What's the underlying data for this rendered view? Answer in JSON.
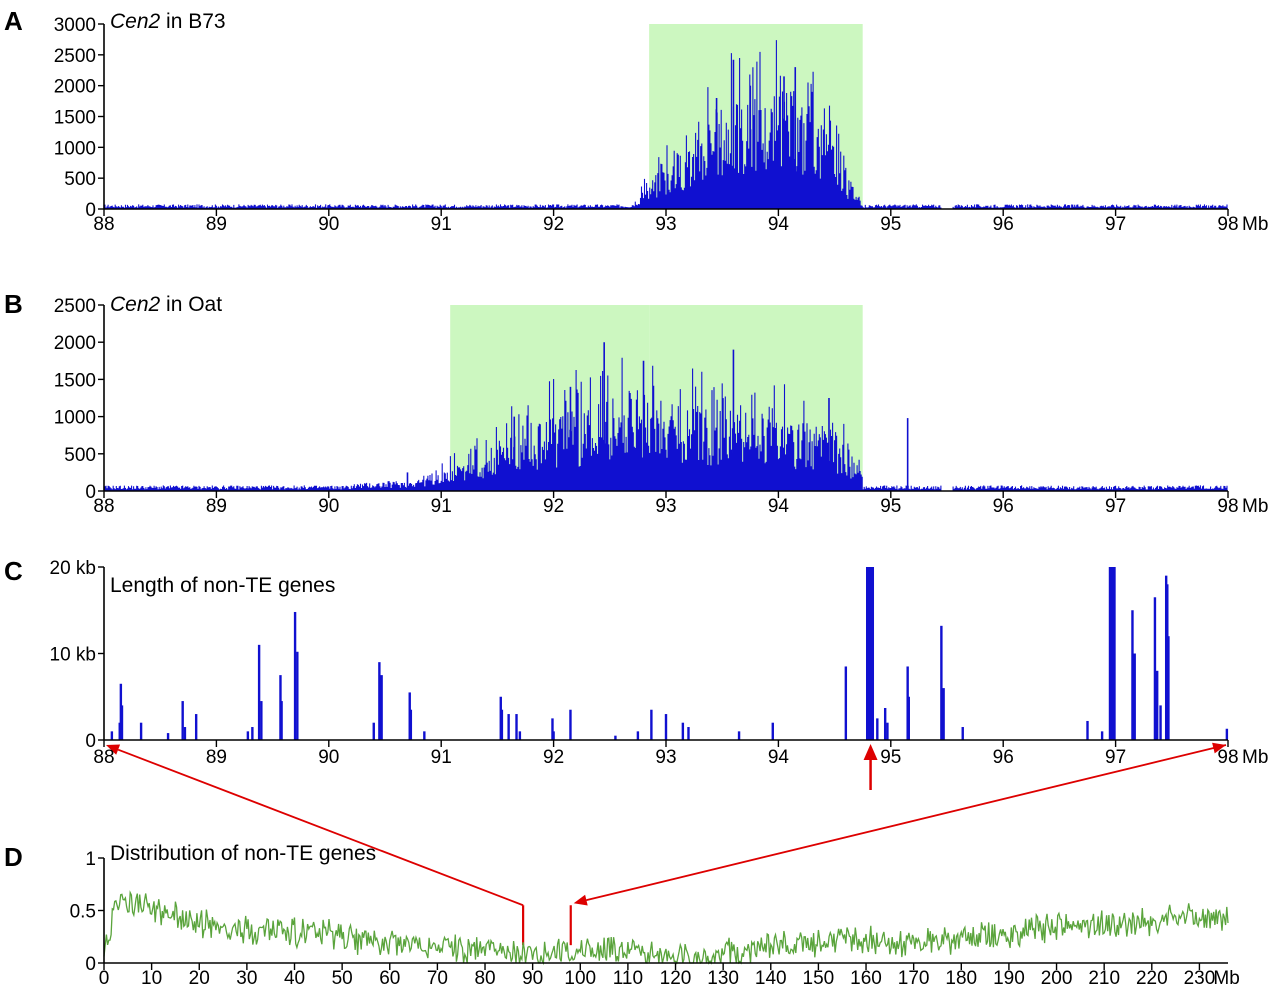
{
  "chart_data": [
    {
      "panel": "A",
      "type": "bar",
      "title_italic": "Cen2",
      "title_rest": " in B73",
      "x_unit": "Mb",
      "xlim": [
        88,
        98
      ],
      "x_ticks": [
        88,
        89,
        90,
        91,
        92,
        93,
        94,
        95,
        96,
        97,
        98
      ],
      "ylim": [
        0,
        3000
      ],
      "y_ticks": [
        0,
        500,
        1000,
        1500,
        2000,
        2500,
        3000
      ],
      "y_tick_labels": [
        "0",
        "500",
        "1000",
        "1500",
        "2000",
        "2500",
        "3000"
      ],
      "highlight_regions": [
        {
          "x": [
            92.85,
            94.75
          ],
          "y": [
            0,
            3000
          ]
        }
      ],
      "baseline": 60,
      "gaps": [
        [
          95.45,
          95.55
        ]
      ],
      "envelope": [
        [
          92.7,
          80
        ],
        [
          92.9,
          450
        ],
        [
          93.2,
          900
        ],
        [
          93.5,
          1400
        ],
        [
          93.8,
          1450
        ],
        [
          94.1,
          1600
        ],
        [
          94.4,
          1200
        ],
        [
          94.6,
          500
        ],
        [
          94.75,
          120
        ]
      ],
      "peaks": [
        [
          93.6,
          2420
        ],
        [
          94.15,
          2300
        ],
        [
          94.05,
          2150
        ],
        [
          93.75,
          2000
        ],
        [
          94.3,
          1900
        ],
        [
          93.45,
          1800
        ]
      ],
      "color": "#1010d0",
      "highlight_color": "#ccf7c0"
    },
    {
      "panel": "B",
      "type": "bar",
      "title_italic": "Cen2",
      "title_rest": " in Oat",
      "x_unit": "Mb",
      "xlim": [
        88,
        98
      ],
      "x_ticks": [
        88,
        89,
        90,
        91,
        92,
        93,
        94,
        95,
        96,
        97,
        98
      ],
      "ylim": [
        0,
        2500
      ],
      "y_ticks": [
        0,
        500,
        1000,
        1500,
        2000,
        2500
      ],
      "y_tick_labels": [
        "0",
        "500",
        "1000",
        "1500",
        "2000",
        "2500"
      ],
      "highlight_regions": [
        {
          "x": [
            91.08,
            92.85
          ],
          "y": [
            0,
            2500
          ]
        },
        {
          "x": [
            92.85,
            94.75
          ],
          "y": [
            0,
            2500
          ]
        }
      ],
      "baseline": 60,
      "gaps": [
        [
          95.45,
          95.55
        ]
      ],
      "envelope": [
        [
          90.2,
          80
        ],
        [
          90.7,
          120
        ],
        [
          91.0,
          220
        ],
        [
          91.3,
          380
        ],
        [
          91.6,
          650
        ],
        [
          92.0,
          850
        ],
        [
          92.4,
          1000
        ],
        [
          92.7,
          1100
        ],
        [
          93.0,
          1000
        ],
        [
          93.4,
          900
        ],
        [
          93.8,
          850
        ],
        [
          94.2,
          800
        ],
        [
          94.5,
          650
        ],
        [
          94.75,
          200
        ]
      ],
      "peaks": [
        [
          92.45,
          2000
        ],
        [
          92.8,
          1750
        ],
        [
          93.6,
          1900
        ],
        [
          92.15,
          1400
        ],
        [
          91.65,
          1000
        ],
        [
          94.45,
          1250
        ],
        [
          95.15,
          980
        ],
        [
          90.7,
          250
        ]
      ],
      "color": "#1010d0",
      "highlight_color": "#ccf7c0"
    },
    {
      "panel": "C",
      "type": "bar",
      "title": "Length of non-TE genes",
      "x_unit": "Mb",
      "xlim": [
        88,
        98
      ],
      "x_ticks": [
        88,
        89,
        90,
        91,
        92,
        93,
        94,
        95,
        96,
        97,
        98
      ],
      "ylim": [
        0,
        20
      ],
      "y_ticks": [
        0,
        10,
        20
      ],
      "y_tick_labels": [
        "0",
        "10 kb",
        "20 kb"
      ],
      "bars": [
        [
          88.07,
          1.0
        ],
        [
          88.15,
          6.5
        ],
        [
          88.16,
          4.0
        ],
        [
          88.14,
          2.0
        ],
        [
          88.33,
          2.0
        ],
        [
          88.57,
          0.8
        ],
        [
          88.7,
          4.5
        ],
        [
          88.72,
          1.5
        ],
        [
          88.82,
          3.0
        ],
        [
          89.28,
          1.0
        ],
        [
          89.32,
          1.5
        ],
        [
          89.38,
          11.0
        ],
        [
          89.4,
          4.5
        ],
        [
          89.57,
          7.5
        ],
        [
          89.58,
          4.5
        ],
        [
          89.7,
          14.8
        ],
        [
          89.72,
          10.2
        ],
        [
          90.4,
          2.0
        ],
        [
          90.45,
          9.0
        ],
        [
          90.47,
          7.5
        ],
        [
          90.72,
          5.5
        ],
        [
          90.73,
          3.5
        ],
        [
          90.85,
          1.0
        ],
        [
          91.53,
          5.0
        ],
        [
          91.54,
          3.5
        ],
        [
          91.6,
          3.0
        ],
        [
          91.67,
          3.0
        ],
        [
          91.7,
          1.0
        ],
        [
          91.99,
          2.5
        ],
        [
          92.0,
          1.0
        ],
        [
          92.15,
          3.5
        ],
        [
          92.55,
          0.5
        ],
        [
          92.75,
          1.0
        ],
        [
          92.87,
          3.5
        ],
        [
          93.0,
          3.0
        ],
        [
          93.15,
          2.0
        ],
        [
          93.2,
          1.5
        ],
        [
          93.65,
          1.0
        ],
        [
          93.95,
          2.0
        ],
        [
          94.6,
          8.5
        ],
        [
          94.79,
          20
        ],
        [
          94.8,
          20
        ],
        [
          94.81,
          20
        ],
        [
          94.82,
          20
        ],
        [
          94.83,
          20
        ],
        [
          94.84,
          20
        ],
        [
          94.88,
          2.5
        ],
        [
          94.95,
          3.7
        ],
        [
          94.97,
          2.0
        ],
        [
          95.15,
          8.5
        ],
        [
          95.16,
          5.0
        ],
        [
          95.45,
          13.2
        ],
        [
          95.47,
          6.0
        ],
        [
          95.64,
          1.5
        ],
        [
          96.75,
          2.2
        ],
        [
          96.88,
          1.0
        ],
        [
          96.95,
          20
        ],
        [
          96.96,
          20
        ],
        [
          96.97,
          20
        ],
        [
          96.98,
          20
        ],
        [
          96.99,
          20
        ],
        [
          97.15,
          15.0
        ],
        [
          97.17,
          10.0
        ],
        [
          97.35,
          16.5
        ],
        [
          97.37,
          8.0
        ],
        [
          97.4,
          4.0
        ],
        [
          97.45,
          19.0
        ],
        [
          97.46,
          18.0
        ],
        [
          97.47,
          12.0
        ],
        [
          97.99,
          1.3
        ]
      ],
      "arrow_at": 94.82,
      "color": "#1010d0"
    },
    {
      "panel": "D",
      "type": "line",
      "title": "Distribution of non-TE genes",
      "x_unit": "Mb",
      "xlim": [
        0,
        236
      ],
      "x_ticks": [
        0,
        10,
        20,
        30,
        40,
        50,
        60,
        70,
        80,
        90,
        100,
        110,
        120,
        130,
        140,
        150,
        160,
        170,
        180,
        190,
        200,
        210,
        220,
        230
      ],
      "ylim": [
        0,
        1
      ],
      "y_ticks": [
        0,
        0.5,
        1
      ],
      "y_tick_labels": [
        "0",
        "0.5",
        "1"
      ],
      "trend": [
        [
          0,
          0.15
        ],
        [
          1,
          0.2
        ],
        [
          2,
          0.6
        ],
        [
          5,
          0.58
        ],
        [
          15,
          0.45
        ],
        [
          25,
          0.32
        ],
        [
          40,
          0.3
        ],
        [
          55,
          0.22
        ],
        [
          70,
          0.15
        ],
        [
          85,
          0.1
        ],
        [
          95,
          0.1
        ],
        [
          100,
          0.12
        ],
        [
          110,
          0.12
        ],
        [
          118,
          0.05
        ],
        [
          125,
          0.05
        ],
        [
          135,
          0.12
        ],
        [
          150,
          0.2
        ],
        [
          170,
          0.2
        ],
        [
          185,
          0.25
        ],
        [
          200,
          0.35
        ],
        [
          215,
          0.38
        ],
        [
          230,
          0.45
        ],
        [
          236,
          0.42
        ]
      ],
      "markers": [
        88,
        98
      ],
      "color": "#5aa43c"
    }
  ],
  "annotation_color": "#dd0000"
}
